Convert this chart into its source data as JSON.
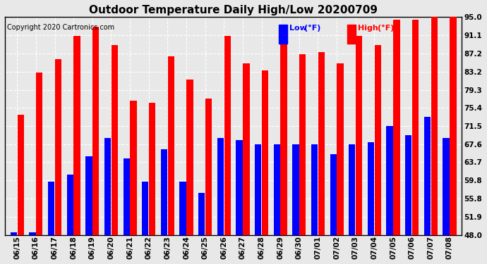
{
  "title": "Outdoor Temperature Daily High/Low 20200709",
  "copyright": "Copyright 2020 Cartronics.com",
  "legend_low_label": "Low",
  "legend_high_label": "High",
  "legend_unit": "(°F)",
  "ytick_labels": [
    "48.0",
    "51.9",
    "55.8",
    "59.8",
    "63.7",
    "67.6",
    "71.5",
    "75.4",
    "79.3",
    "83.2",
    "87.2",
    "91.1",
    "95.0"
  ],
  "ytick_values": [
    48.0,
    51.9,
    55.8,
    59.8,
    63.7,
    67.6,
    71.5,
    75.4,
    79.3,
    83.2,
    87.2,
    91.1,
    95.0
  ],
  "ymin": 48.0,
  "ymax": 95.0,
  "dates": [
    "06/15",
    "06/16",
    "06/17",
    "06/18",
    "06/19",
    "06/20",
    "06/21",
    "06/22",
    "06/23",
    "06/24",
    "06/25",
    "06/26",
    "06/27",
    "06/28",
    "06/29",
    "06/30",
    "07/01",
    "07/02",
    "07/03",
    "07/04",
    "07/05",
    "07/06",
    "07/07",
    "07/08"
  ],
  "high_values": [
    74.0,
    83.0,
    86.0,
    91.0,
    93.0,
    89.0,
    77.0,
    76.5,
    86.5,
    81.5,
    77.5,
    91.0,
    85.0,
    83.5,
    91.0,
    87.0,
    87.5,
    85.0,
    91.0,
    89.0,
    94.5,
    94.5,
    95.0,
    95.0
  ],
  "low_values": [
    48.5,
    48.5,
    59.5,
    61.0,
    65.0,
    69.0,
    64.5,
    59.5,
    66.5,
    59.5,
    57.0,
    69.0,
    68.5,
    67.5,
    67.5,
    67.5,
    67.5,
    65.5,
    67.5,
    68.0,
    71.5,
    69.5,
    73.5,
    69.0
  ],
  "bar_color_high": "#ff0000",
  "bar_color_low": "#0000ff",
  "background_color": "#e8e8e8",
  "plot_bg_color": "#e8e8e8",
  "grid_color": "#ffffff",
  "border_color": "#000000",
  "title_fontsize": 11,
  "tick_fontsize": 7.5,
  "copyright_fontsize": 7,
  "bar_width": 0.35
}
